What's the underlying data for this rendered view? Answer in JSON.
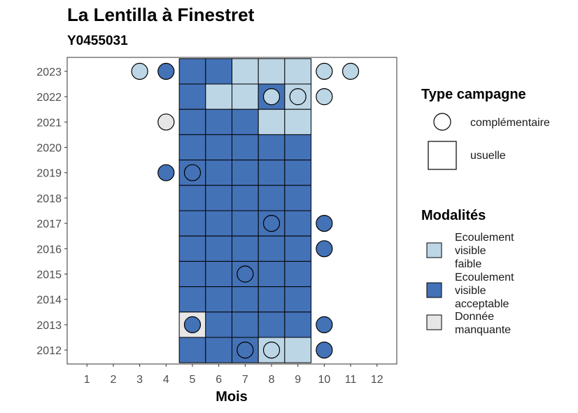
{
  "chart_data": {
    "type": "heatmap",
    "title": "La Lentilla à Finestret",
    "subtitle": "Y0455031",
    "xlabel": "Mois",
    "ylabel": "",
    "x_ticks": [
      "1",
      "2",
      "3",
      "4",
      "5",
      "6",
      "7",
      "8",
      "9",
      "10",
      "11",
      "12"
    ],
    "y_ticks": [
      "2012",
      "2013",
      "2014",
      "2015",
      "2016",
      "2017",
      "2018",
      "2019",
      "2020",
      "2021",
      "2022",
      "2023"
    ],
    "grid": false,
    "legend_placement": "right",
    "colors": {
      "faible": "#bcd6e6",
      "acceptable": "#4472b7",
      "manquante": "#e6e6e6"
    },
    "legend_type": {
      "title": "Type campagne",
      "items": [
        {
          "shape": "circle",
          "label": "complémentaire"
        },
        {
          "shape": "square",
          "label": "usuelle"
        }
      ]
    },
    "legend_modalites": {
      "title": "Modalités",
      "items": [
        {
          "key": "faible",
          "lines": [
            "Ecoulement",
            "visible",
            "faible"
          ]
        },
        {
          "key": "acceptable",
          "lines": [
            "Ecoulement",
            "visible",
            "acceptable"
          ]
        },
        {
          "key": "manquante",
          "lines": [
            "Donnée",
            "manquante"
          ]
        }
      ]
    },
    "observations": [
      {
        "year": 2023,
        "month": 3,
        "type": "complémentaire",
        "modalite": "faible"
      },
      {
        "year": 2023,
        "month": 4,
        "type": "complémentaire",
        "modalite": "acceptable"
      },
      {
        "year": 2023,
        "month": 5,
        "type": "usuelle",
        "modalite": "acceptable"
      },
      {
        "year": 2023,
        "month": 6,
        "type": "usuelle",
        "modalite": "acceptable"
      },
      {
        "year": 2023,
        "month": 7,
        "type": "usuelle",
        "modalite": "faible"
      },
      {
        "year": 2023,
        "month": 8,
        "type": "usuelle",
        "modalite": "faible"
      },
      {
        "year": 2023,
        "month": 9,
        "type": "usuelle",
        "modalite": "faible"
      },
      {
        "year": 2023,
        "month": 10,
        "type": "complémentaire",
        "modalite": "faible"
      },
      {
        "year": 2023,
        "month": 11,
        "type": "complémentaire",
        "modalite": "faible"
      },
      {
        "year": 2022,
        "month": 5,
        "type": "usuelle",
        "modalite": "acceptable"
      },
      {
        "year": 2022,
        "month": 6,
        "type": "usuelle",
        "modalite": "faible"
      },
      {
        "year": 2022,
        "month": 7,
        "type": "usuelle",
        "modalite": "faible"
      },
      {
        "year": 2022,
        "month": 8,
        "type": "usuelle",
        "modalite": "acceptable"
      },
      {
        "year": 2022,
        "month": 8,
        "type": "complémentaire",
        "modalite": "faible"
      },
      {
        "year": 2022,
        "month": 9,
        "type": "usuelle",
        "modalite": "faible"
      },
      {
        "year": 2022,
        "month": 9,
        "type": "complémentaire",
        "modalite": "faible"
      },
      {
        "year": 2022,
        "month": 10,
        "type": "complémentaire",
        "modalite": "faible"
      },
      {
        "year": 2021,
        "month": 4,
        "type": "complémentaire",
        "modalite": "manquante"
      },
      {
        "year": 2021,
        "month": 5,
        "type": "usuelle",
        "modalite": "acceptable"
      },
      {
        "year": 2021,
        "month": 6,
        "type": "usuelle",
        "modalite": "acceptable"
      },
      {
        "year": 2021,
        "month": 7,
        "type": "usuelle",
        "modalite": "acceptable"
      },
      {
        "year": 2021,
        "month": 8,
        "type": "usuelle",
        "modalite": "faible"
      },
      {
        "year": 2021,
        "month": 9,
        "type": "usuelle",
        "modalite": "faible"
      },
      {
        "year": 2020,
        "month": 5,
        "type": "usuelle",
        "modalite": "acceptable"
      },
      {
        "year": 2020,
        "month": 6,
        "type": "usuelle",
        "modalite": "acceptable"
      },
      {
        "year": 2020,
        "month": 7,
        "type": "usuelle",
        "modalite": "acceptable"
      },
      {
        "year": 2020,
        "month": 8,
        "type": "usuelle",
        "modalite": "acceptable"
      },
      {
        "year": 2020,
        "month": 9,
        "type": "usuelle",
        "modalite": "acceptable"
      },
      {
        "year": 2019,
        "month": 4,
        "type": "complémentaire",
        "modalite": "acceptable"
      },
      {
        "year": 2019,
        "month": 5,
        "type": "usuelle",
        "modalite": "acceptable"
      },
      {
        "year": 2019,
        "month": 5,
        "type": "complémentaire",
        "modalite": "acceptable"
      },
      {
        "year": 2019,
        "month": 6,
        "type": "usuelle",
        "modalite": "acceptable"
      },
      {
        "year": 2019,
        "month": 7,
        "type": "usuelle",
        "modalite": "acceptable"
      },
      {
        "year": 2019,
        "month": 8,
        "type": "usuelle",
        "modalite": "acceptable"
      },
      {
        "year": 2019,
        "month": 9,
        "type": "usuelle",
        "modalite": "acceptable"
      },
      {
        "year": 2018,
        "month": 5,
        "type": "usuelle",
        "modalite": "acceptable"
      },
      {
        "year": 2018,
        "month": 6,
        "type": "usuelle",
        "modalite": "acceptable"
      },
      {
        "year": 2018,
        "month": 7,
        "type": "usuelle",
        "modalite": "acceptable"
      },
      {
        "year": 2018,
        "month": 8,
        "type": "usuelle",
        "modalite": "acceptable"
      },
      {
        "year": 2018,
        "month": 9,
        "type": "usuelle",
        "modalite": "acceptable"
      },
      {
        "year": 2017,
        "month": 5,
        "type": "usuelle",
        "modalite": "acceptable"
      },
      {
        "year": 2017,
        "month": 6,
        "type": "usuelle",
        "modalite": "acceptable"
      },
      {
        "year": 2017,
        "month": 7,
        "type": "usuelle",
        "modalite": "acceptable"
      },
      {
        "year": 2017,
        "month": 8,
        "type": "usuelle",
        "modalite": "acceptable"
      },
      {
        "year": 2017,
        "month": 8,
        "type": "complémentaire",
        "modalite": "acceptable"
      },
      {
        "year": 2017,
        "month": 9,
        "type": "usuelle",
        "modalite": "acceptable"
      },
      {
        "year": 2017,
        "month": 10,
        "type": "complémentaire",
        "modalite": "acceptable"
      },
      {
        "year": 2016,
        "month": 5,
        "type": "usuelle",
        "modalite": "acceptable"
      },
      {
        "year": 2016,
        "month": 6,
        "type": "usuelle",
        "modalite": "acceptable"
      },
      {
        "year": 2016,
        "month": 7,
        "type": "usuelle",
        "modalite": "acceptable"
      },
      {
        "year": 2016,
        "month": 8,
        "type": "usuelle",
        "modalite": "acceptable"
      },
      {
        "year": 2016,
        "month": 9,
        "type": "usuelle",
        "modalite": "acceptable"
      },
      {
        "year": 2016,
        "month": 10,
        "type": "complémentaire",
        "modalite": "acceptable"
      },
      {
        "year": 2015,
        "month": 5,
        "type": "usuelle",
        "modalite": "acceptable"
      },
      {
        "year": 2015,
        "month": 6,
        "type": "usuelle",
        "modalite": "acceptable"
      },
      {
        "year": 2015,
        "month": 7,
        "type": "usuelle",
        "modalite": "acceptable"
      },
      {
        "year": 2015,
        "month": 7,
        "type": "complémentaire",
        "modalite": "acceptable"
      },
      {
        "year": 2015,
        "month": 8,
        "type": "usuelle",
        "modalite": "acceptable"
      },
      {
        "year": 2015,
        "month": 9,
        "type": "usuelle",
        "modalite": "acceptable"
      },
      {
        "year": 2014,
        "month": 5,
        "type": "usuelle",
        "modalite": "acceptable"
      },
      {
        "year": 2014,
        "month": 6,
        "type": "usuelle",
        "modalite": "acceptable"
      },
      {
        "year": 2014,
        "month": 7,
        "type": "usuelle",
        "modalite": "acceptable"
      },
      {
        "year": 2014,
        "month": 8,
        "type": "usuelle",
        "modalite": "acceptable"
      },
      {
        "year": 2014,
        "month": 9,
        "type": "usuelle",
        "modalite": "acceptable"
      },
      {
        "year": 2013,
        "month": 5,
        "type": "usuelle",
        "modalite": "manquante"
      },
      {
        "year": 2013,
        "month": 5,
        "type": "complémentaire",
        "modalite": "acceptable"
      },
      {
        "year": 2013,
        "month": 6,
        "type": "usuelle",
        "modalite": "acceptable"
      },
      {
        "year": 2013,
        "month": 7,
        "type": "usuelle",
        "modalite": "acceptable"
      },
      {
        "year": 2013,
        "month": 8,
        "type": "usuelle",
        "modalite": "acceptable"
      },
      {
        "year": 2013,
        "month": 9,
        "type": "usuelle",
        "modalite": "acceptable"
      },
      {
        "year": 2013,
        "month": 10,
        "type": "complémentaire",
        "modalite": "acceptable"
      },
      {
        "year": 2012,
        "month": 5,
        "type": "usuelle",
        "modalite": "acceptable"
      },
      {
        "year": 2012,
        "month": 6,
        "type": "usuelle",
        "modalite": "acceptable"
      },
      {
        "year": 2012,
        "month": 7,
        "type": "usuelle",
        "modalite": "acceptable"
      },
      {
        "year": 2012,
        "month": 7,
        "type": "complémentaire",
        "modalite": "acceptable"
      },
      {
        "year": 2012,
        "month": 8,
        "type": "usuelle",
        "modalite": "faible"
      },
      {
        "year": 2012,
        "month": 8,
        "type": "complémentaire",
        "modalite": "faible"
      },
      {
        "year": 2012,
        "month": 9,
        "type": "usuelle",
        "modalite": "faible"
      },
      {
        "year": 2012,
        "month": 10,
        "type": "complémentaire",
        "modalite": "acceptable"
      }
    ]
  }
}
